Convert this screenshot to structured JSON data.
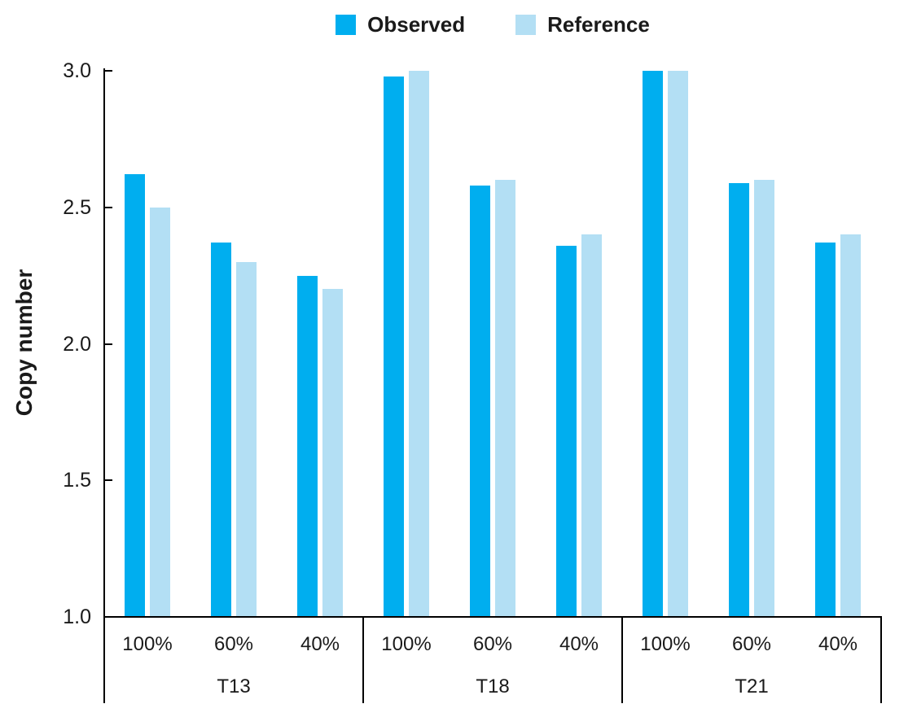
{
  "chart_data": {
    "type": "bar",
    "title": "",
    "ylabel": "Copy number",
    "xlabel": "",
    "ylim": [
      1.0,
      3.0
    ],
    "yticks": [
      {
        "value": 3.0,
        "label": "3.0"
      },
      {
        "value": 2.5,
        "label": "2.5"
      },
      {
        "value": 2.0,
        "label": "2.0"
      },
      {
        "value": 1.5,
        "label": "1.5"
      },
      {
        "value": 1.0,
        "label": "1.0"
      }
    ],
    "groups": [
      "T13",
      "T18",
      "T21"
    ],
    "categories": [
      "100%",
      "60%",
      "40%"
    ],
    "series": [
      {
        "name": "Observed",
        "color": "#00AEEF",
        "values": [
          [
            2.62,
            2.37,
            2.25
          ],
          [
            2.98,
            2.58,
            2.36
          ],
          [
            3.0,
            2.59,
            2.37
          ]
        ]
      },
      {
        "name": "Reference",
        "color": "#B3DFF4",
        "values": [
          [
            2.5,
            2.3,
            2.2
          ],
          [
            3.0,
            2.6,
            2.4
          ],
          [
            3.0,
            2.6,
            2.4
          ]
        ]
      }
    ],
    "legend_position": "top",
    "grid": false,
    "axis_color": "#000000",
    "text_color": "#1A1A1A"
  }
}
